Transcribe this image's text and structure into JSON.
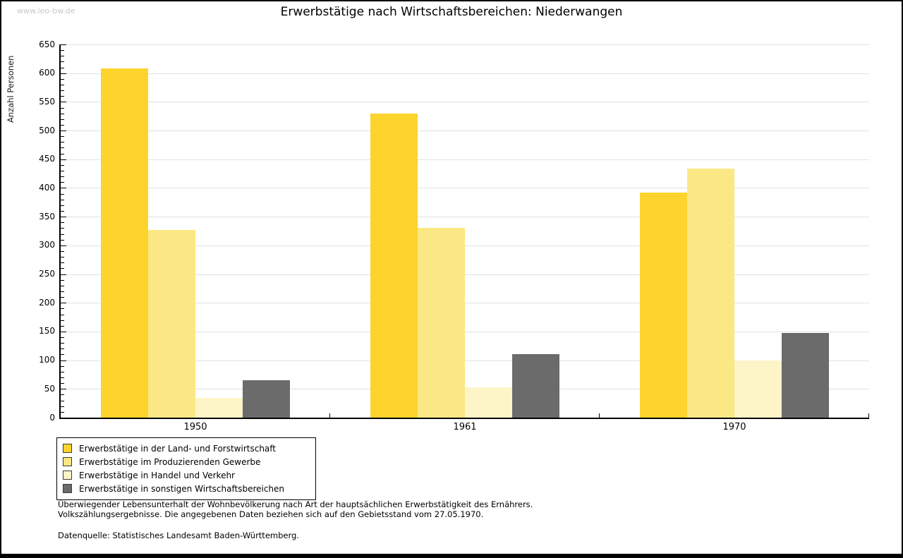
{
  "watermark": "www.leo-bw.de",
  "title": "Erwerbstätige nach Wirtschaftsbereichen: Niederwangen",
  "chart_data": {
    "type": "bar",
    "title": "Erwerbstätige nach Wirtschaftsbereichen: Niederwangen",
    "xlabel": "",
    "ylabel": "Anzahl Personen",
    "ylim": [
      0,
      650
    ],
    "y_major_step": 50,
    "y_minor_step": 10,
    "grid": true,
    "legend_position": "bottom-left",
    "categories": [
      "1950",
      "1961",
      "1970"
    ],
    "series": [
      {
        "name": "Erwerbstätige in der Land- und Forstwirtschaft",
        "color": "#fcd42d",
        "values": [
          608,
          529,
          392
        ]
      },
      {
        "name": "Erwerbstätige im Produzierenden Gewerbe",
        "color": "#fbe884",
        "values": [
          327,
          331,
          434
        ]
      },
      {
        "name": "Erwerbstätige in Handel und Verkehr",
        "color": "#fdf4c8",
        "values": [
          35,
          53,
          100
        ]
      },
      {
        "name": "Erwerbstätige in sonstigen Wirtschaftsbereichen",
        "color": "#6b6b6b",
        "values": [
          65,
          111,
          148
        ]
      }
    ]
  },
  "footnotes": [
    "Überwiegender Lebensunterhalt der Wohnbevölkerung nach Art der hauptsächlichen Erwerbstätigkeit des Ernährers.",
    "Volkszählungsergebnisse. Die angegebenen Daten beziehen sich auf den Gebietsstand vom 27.05.1970.",
    "Datenquelle: Statistisches Landesamt Baden-Württemberg."
  ]
}
